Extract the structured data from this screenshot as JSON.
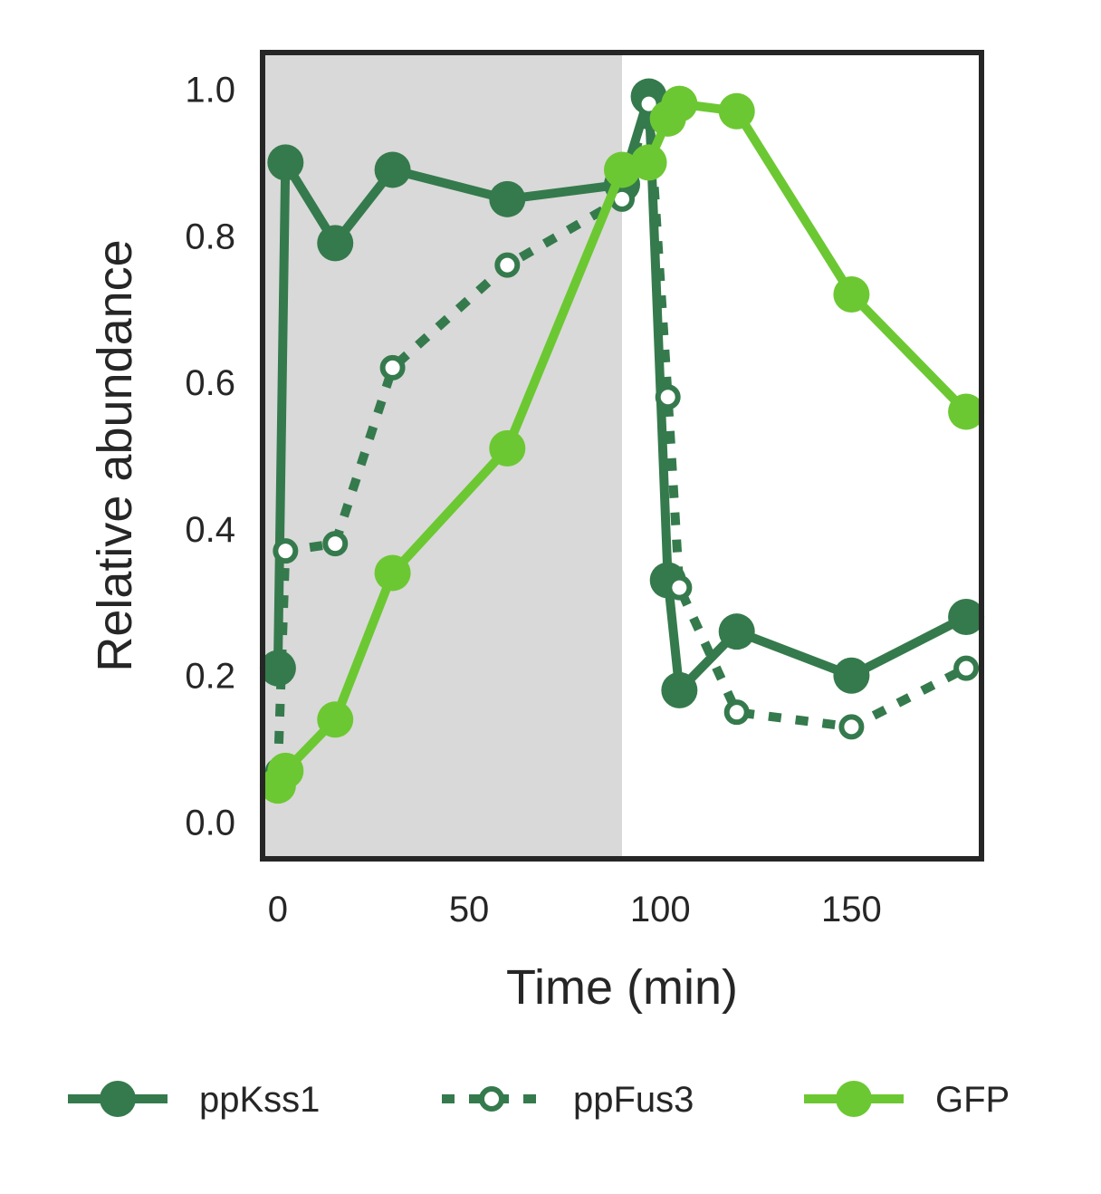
{
  "chart_data": {
    "type": "line",
    "title": "",
    "xlabel": "Time (min)",
    "ylabel": "Relative abundance",
    "xlim": [
      -4,
      184
    ],
    "ylim": [
      -0.05,
      1.05
    ],
    "xticks": [
      0,
      50,
      100,
      150
    ],
    "xtick_labels": [
      "0",
      "50",
      "100",
      "150"
    ],
    "yticks": [
      0.0,
      0.2,
      0.4,
      0.6,
      0.8,
      1.0
    ],
    "ytick_labels": [
      "0.0",
      "0.2",
      "0.4",
      "0.6",
      "0.8",
      "1.0"
    ],
    "grid": false,
    "shaded_region": {
      "x_start": -4,
      "x_end": 90,
      "color": "#d9d9d9"
    },
    "legend_position": "bottom",
    "series": [
      {
        "name": "ppKss1",
        "color": "#357a4c",
        "style": "solid",
        "marker": "filled",
        "x": [
          0,
          2,
          15,
          30,
          60,
          90,
          97,
          102,
          105,
          120,
          150,
          180
        ],
        "y": [
          0.21,
          0.9,
          0.79,
          0.89,
          0.85,
          0.87,
          0.99,
          0.33,
          0.18,
          0.26,
          0.2,
          0.28
        ]
      },
      {
        "name": "ppFus3",
        "color": "#357a4c",
        "style": "dashed",
        "marker": "open",
        "x": [
          0,
          2,
          15,
          30,
          60,
          90,
          97,
          102,
          105,
          120,
          150,
          180
        ],
        "y": [
          0.07,
          0.37,
          0.38,
          0.62,
          0.76,
          0.85,
          0.98,
          0.58,
          0.32,
          0.15,
          0.13,
          0.21
        ]
      },
      {
        "name": "GFP",
        "color": "#6cc832",
        "style": "solid",
        "marker": "filled",
        "x": [
          0,
          2,
          15,
          30,
          60,
          90,
          97,
          102,
          105,
          120,
          150,
          180
        ],
        "y": [
          0.05,
          0.07,
          0.14,
          0.34,
          0.51,
          0.89,
          0.9,
          0.96,
          0.98,
          0.97,
          0.72,
          0.56
        ]
      }
    ]
  }
}
